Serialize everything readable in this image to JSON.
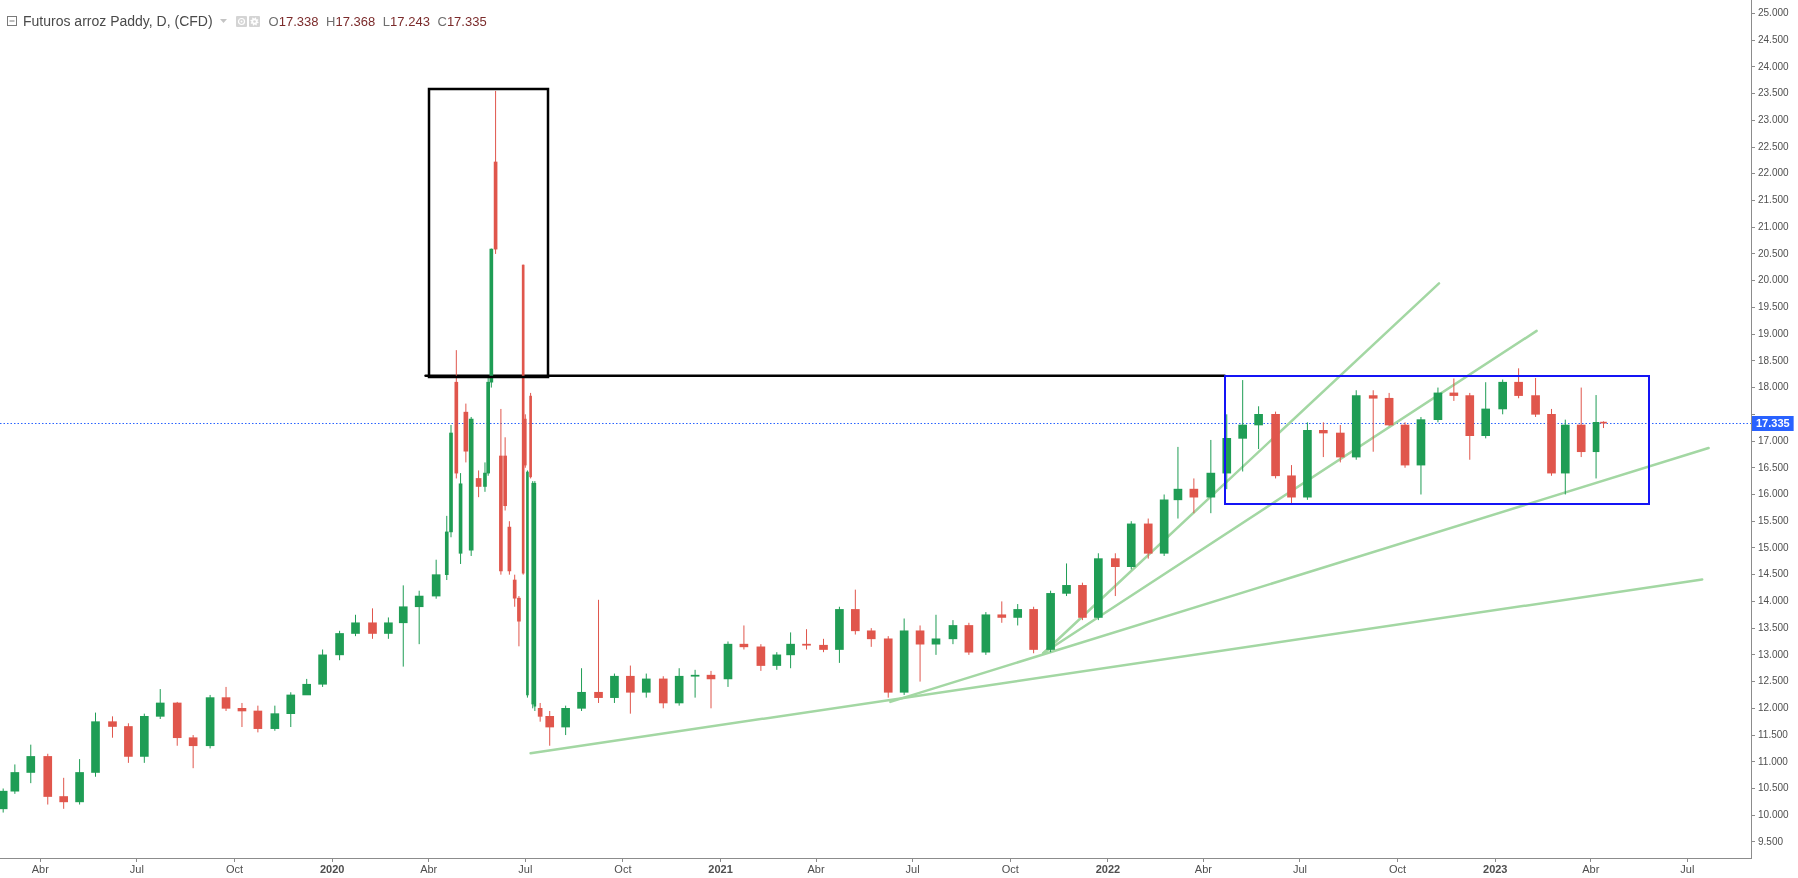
{
  "chart_data": {
    "type": "candlestick",
    "title": "Futuros arroz Paddy, D, (CFD)",
    "subtitle": "O17.338 H17.368 L17.243 C17.335",
    "x": [
      "2019-02-25",
      "2019-03-08",
      "2019-03-23",
      "2019-04-08",
      "2019-04-23",
      "2019-05-08",
      "2019-05-23",
      "2019-06-08",
      "2019-06-23",
      "2019-07-08",
      "2019-07-23",
      "2019-08-08",
      "2019-08-23",
      "2019-09-08",
      "2019-09-23",
      "2019-10-08",
      "2019-10-23",
      "2019-11-08",
      "2019-11-23",
      "2019-12-08",
      "2019-12-23",
      "2020-01-08",
      "2020-01-23",
      "2020-02-08",
      "2020-02-23",
      "2020-03-08",
      "2020-03-23",
      "2020-04-08",
      "2020-04-18",
      "2020-04-22",
      "2020-04-27",
      "2020-05-01",
      "2020-05-06",
      "2020-05-11",
      "2020-05-18",
      "2020-05-24",
      "2020-05-27",
      "2020-05-30",
      "2020-06-03",
      "2020-06-08",
      "2020-06-12",
      "2020-06-16",
      "2020-06-21",
      "2020-06-25",
      "2020-06-29",
      "2020-07-01",
      "2020-07-03",
      "2020-07-06",
      "2020-07-08",
      "2020-07-10",
      "2020-07-15",
      "2020-07-24",
      "2020-08-08",
      "2020-08-23",
      "2020-09-08",
      "2020-09-23",
      "2020-10-08",
      "2020-10-23",
      "2020-11-08",
      "2020-11-23",
      "2020-12-08",
      "2020-12-23",
      "2021-01-08",
      "2021-01-23",
      "2021-02-08",
      "2021-02-23",
      "2021-03-08",
      "2021-03-23",
      "2021-04-08",
      "2021-04-23",
      "2021-05-08",
      "2021-05-23",
      "2021-06-08",
      "2021-06-23",
      "2021-07-08",
      "2021-07-23",
      "2021-08-08",
      "2021-08-23",
      "2021-09-08",
      "2021-09-23",
      "2021-10-08",
      "2021-10-23",
      "2021-11-08",
      "2021-11-23",
      "2021-12-08",
      "2021-12-23",
      "2022-01-08",
      "2022-01-23",
      "2022-02-08",
      "2022-02-23",
      "2022-03-08",
      "2022-03-23",
      "2022-04-08",
      "2022-04-23",
      "2022-05-08",
      "2022-05-23",
      "2022-06-08",
      "2022-06-23",
      "2022-07-08",
      "2022-07-23",
      "2022-08-08",
      "2022-08-23",
      "2022-09-08",
      "2022-09-23",
      "2022-10-08",
      "2022-10-23",
      "2022-11-08",
      "2022-11-23",
      "2022-12-08",
      "2022-12-23",
      "2023-01-08",
      "2023-01-23",
      "2023-02-08",
      "2023-02-23",
      "2023-03-08",
      "2023-03-23",
      "2023-04-06",
      "2023-04-13"
    ],
    "ohlc": [
      [
        10.12,
        10.5,
        10.05,
        10.45
      ],
      [
        10.45,
        10.95,
        10.4,
        10.8
      ],
      [
        10.8,
        11.32,
        10.6,
        11.1
      ],
      [
        11.1,
        11.15,
        10.2,
        10.35
      ],
      [
        10.35,
        10.7,
        10.12,
        10.25
      ],
      [
        10.25,
        11.05,
        10.2,
        10.8
      ],
      [
        10.8,
        11.92,
        10.72,
        11.75
      ],
      [
        11.75,
        11.85,
        11.45,
        11.66
      ],
      [
        11.66,
        11.72,
        10.98,
        11.1
      ],
      [
        11.1,
        11.9,
        10.98,
        11.85
      ],
      [
        11.85,
        12.36,
        11.8,
        12.1
      ],
      [
        12.1,
        12.12,
        11.3,
        11.45
      ],
      [
        11.45,
        11.5,
        10.88,
        11.3
      ],
      [
        11.3,
        12.25,
        11.25,
        12.2
      ],
      [
        12.2,
        12.4,
        11.95,
        12.0
      ],
      [
        12.0,
        12.1,
        11.65,
        11.95
      ],
      [
        11.95,
        12.05,
        11.55,
        11.62
      ],
      [
        11.62,
        12.05,
        11.58,
        11.9
      ],
      [
        11.9,
        12.3,
        11.65,
        12.25
      ],
      [
        12.25,
        12.55,
        12.25,
        12.45
      ],
      [
        12.45,
        13.1,
        12.4,
        13.0
      ],
      [
        13.0,
        13.45,
        12.9,
        13.4
      ],
      [
        13.4,
        13.75,
        13.35,
        13.6
      ],
      [
        13.6,
        13.87,
        13.3,
        13.4
      ],
      [
        13.4,
        13.7,
        13.3,
        13.6
      ],
      [
        13.6,
        14.3,
        12.78,
        13.9
      ],
      [
        13.9,
        14.2,
        13.2,
        14.1
      ],
      [
        14.1,
        14.78,
        14.05,
        14.5
      ],
      [
        14.5,
        15.6,
        14.4,
        15.3
      ],
      [
        15.3,
        17.3,
        15.2,
        17.15
      ],
      [
        18.1,
        18.7,
        16.3,
        16.4
      ],
      [
        14.9,
        16.4,
        14.7,
        16.2
      ],
      [
        17.54,
        17.7,
        16.6,
        16.81
      ],
      [
        14.96,
        17.45,
        14.85,
        17.41
      ],
      [
        16.3,
        16.45,
        15.95,
        16.15
      ],
      [
        16.15,
        16.6,
        16.05,
        16.4
      ],
      [
        16.4,
        18.2,
        16.35,
        18.1
      ],
      [
        18.1,
        20.6,
        18.0,
        20.59
      ],
      [
        22.22,
        23.55,
        20.5,
        20.59
      ],
      [
        16.72,
        17.6,
        14.5,
        14.57
      ],
      [
        16.72,
        17.07,
        15.7,
        15.79
      ],
      [
        15.39,
        15.5,
        14.5,
        14.57
      ],
      [
        14.4,
        14.5,
        13.9,
        14.06
      ],
      [
        14.06,
        14.1,
        13.16,
        13.63
      ],
      [
        20.29,
        20.3,
        14.5,
        14.53
      ],
      [
        17.41,
        17.5,
        16.5,
        16.55
      ],
      [
        12.25,
        16.45,
        12.2,
        16.42
      ],
      [
        17.84,
        17.9,
        16.3,
        16.33
      ],
      [
        12.08,
        16.25,
        12.0,
        16.21
      ],
      [
        12.04,
        16.25,
        11.95,
        16.21
      ],
      [
        12.0,
        12.1,
        11.75,
        11.85
      ],
      [
        11.85,
        11.95,
        11.3,
        11.65
      ],
      [
        11.65,
        12.05,
        11.5,
        12.0
      ],
      [
        12.0,
        12.75,
        11.95,
        12.3
      ],
      [
        12.3,
        14.03,
        12.1,
        12.2
      ],
      [
        12.2,
        12.65,
        12.1,
        12.6
      ],
      [
        12.6,
        12.8,
        11.9,
        12.3
      ],
      [
        12.3,
        12.65,
        12.2,
        12.55
      ],
      [
        12.55,
        12.6,
        12.0,
        12.1
      ],
      [
        12.1,
        12.75,
        12.05,
        12.6
      ],
      [
        12.6,
        12.72,
        12.2,
        12.62
      ],
      [
        12.62,
        12.7,
        12.0,
        12.55
      ],
      [
        12.55,
        13.25,
        12.4,
        13.2
      ],
      [
        13.2,
        13.55,
        13.1,
        13.15
      ],
      [
        13.15,
        13.2,
        12.7,
        12.8
      ],
      [
        12.8,
        13.05,
        12.72,
        13.0
      ],
      [
        13.0,
        13.42,
        12.75,
        13.2
      ],
      [
        13.2,
        13.48,
        13.1,
        13.18
      ],
      [
        13.18,
        13.3,
        13.05,
        13.1
      ],
      [
        13.1,
        13.9,
        12.85,
        13.85
      ],
      [
        13.85,
        14.22,
        13.38,
        13.45
      ],
      [
        13.45,
        13.5,
        13.15,
        13.3
      ],
      [
        13.3,
        13.35,
        12.2,
        12.3
      ],
      [
        12.3,
        13.68,
        12.25,
        13.45
      ],
      [
        13.45,
        13.55,
        12.5,
        13.2
      ],
      [
        13.2,
        13.75,
        13.0,
        13.3
      ],
      [
        13.3,
        13.65,
        13.2,
        13.55
      ],
      [
        13.55,
        13.6,
        13.0,
        13.05
      ],
      [
        13.05,
        13.8,
        13.0,
        13.75
      ],
      [
        13.75,
        14.0,
        13.6,
        13.7
      ],
      [
        13.7,
        13.95,
        13.55,
        13.85
      ],
      [
        13.85,
        13.9,
        13.03,
        13.1
      ],
      [
        13.1,
        14.2,
        13.05,
        14.15
      ],
      [
        14.15,
        14.71,
        14.1,
        14.3
      ],
      [
        14.3,
        14.35,
        13.65,
        13.7
      ],
      [
        13.7,
        14.9,
        13.65,
        14.8
      ],
      [
        14.8,
        14.9,
        14.1,
        14.65
      ],
      [
        14.65,
        15.5,
        14.6,
        15.45
      ],
      [
        15.45,
        15.55,
        14.8,
        14.9
      ],
      [
        14.9,
        16.0,
        14.85,
        15.9
      ],
      [
        15.9,
        16.89,
        15.55,
        16.1
      ],
      [
        16.1,
        16.3,
        15.65,
        15.95
      ],
      [
        15.95,
        17.02,
        15.65,
        16.4
      ],
      [
        16.4,
        17.5,
        16.1,
        17.05
      ],
      [
        17.05,
        18.14,
        16.43,
        17.3
      ],
      [
        17.3,
        17.65,
        16.85,
        17.5
      ],
      [
        17.5,
        17.55,
        16.3,
        16.35
      ],
      [
        16.35,
        16.55,
        15.83,
        15.95
      ],
      [
        15.95,
        17.35,
        15.9,
        17.2
      ],
      [
        17.2,
        17.35,
        16.7,
        17.15
      ],
      [
        17.15,
        17.3,
        16.6,
        16.7
      ],
      [
        16.7,
        17.95,
        16.65,
        17.85
      ],
      [
        17.85,
        17.95,
        16.8,
        17.8
      ],
      [
        17.8,
        17.9,
        17.28,
        17.3
      ],
      [
        17.3,
        17.35,
        16.5,
        16.55
      ],
      [
        16.55,
        17.45,
        16.0,
        17.4
      ],
      [
        17.4,
        18.0,
        17.35,
        17.9
      ],
      [
        17.9,
        18.17,
        17.75,
        17.85
      ],
      [
        17.85,
        17.9,
        16.65,
        17.1
      ],
      [
        17.1,
        18.1,
        17.05,
        17.6
      ],
      [
        17.6,
        18.15,
        17.5,
        18.1
      ],
      [
        18.1,
        18.36,
        17.8,
        17.85
      ],
      [
        17.85,
        18.18,
        17.45,
        17.5
      ],
      [
        17.5,
        17.6,
        16.35,
        16.4
      ],
      [
        16.4,
        17.4,
        16.0,
        17.3
      ],
      [
        17.3,
        18.0,
        16.7,
        16.8
      ],
      [
        16.8,
        17.86,
        16.3,
        17.35
      ],
      [
        17.338,
        17.368,
        17.243,
        17.335
      ]
    ],
    "colors": [
      "#1f9d55",
      "#1f9d55",
      "#1f9d55",
      "#e0564c",
      "#e0564c",
      "#1f9d55",
      "#1f9d55",
      "#e0564c",
      "#e0564c",
      "#1f9d55",
      "#1f9d55",
      "#e0564c",
      "#e0564c",
      "#1f9d55",
      "#e0564c",
      "#e0564c",
      "#e0564c",
      "#1f9d55",
      "#1f9d55",
      "#1f9d55",
      "#1f9d55",
      "#1f9d55",
      "#1f9d55",
      "#e0564c",
      "#1f9d55",
      "#1f9d55",
      "#1f9d55",
      "#1f9d55",
      "#1f9d55",
      "#1f9d55",
      "#e0564c",
      "#1f9d55",
      "#e0564c",
      "#1f9d55",
      "#e0564c",
      "#1f9d55",
      "#1f9d55",
      "#1f9d55",
      "#e0564c",
      "#e0564c",
      "#e0564c",
      "#e0564c",
      "#e0564c",
      "#e0564c",
      "#e0564c",
      "#e0564c",
      "#1f9d55",
      "#e0564c",
      "#1f9d55",
      "#1f9d55",
      "#e0564c",
      "#e0564c",
      "#1f9d55",
      "#1f9d55",
      "#e0564c",
      "#1f9d55",
      "#e0564c",
      "#1f9d55",
      "#e0564c",
      "#1f9d55",
      "#1f9d55",
      "#e0564c",
      "#1f9d55",
      "#e0564c",
      "#e0564c",
      "#1f9d55",
      "#1f9d55",
      "#e0564c",
      "#e0564c",
      "#1f9d55",
      "#e0564c",
      "#e0564c",
      "#e0564c",
      "#1f9d55",
      "#e0564c",
      "#1f9d55",
      "#1f9d55",
      "#e0564c",
      "#1f9d55",
      "#e0564c",
      "#1f9d55",
      "#e0564c",
      "#1f9d55",
      "#1f9d55",
      "#e0564c",
      "#1f9d55",
      "#e0564c",
      "#1f9d55",
      "#e0564c",
      "#1f9d55",
      "#1f9d55",
      "#e0564c",
      "#1f9d55",
      "#1f9d55",
      "#1f9d55",
      "#1f9d55",
      "#e0564c",
      "#e0564c",
      "#1f9d55",
      "#e0564c",
      "#e0564c",
      "#1f9d55",
      "#e0564c",
      "#e0564c",
      "#e0564c",
      "#1f9d55",
      "#1f9d55",
      "#e0564c",
      "#e0564c",
      "#1f9d55",
      "#1f9d55",
      "#e0564c",
      "#e0564c",
      "#e0564c",
      "#1f9d55",
      "#e0564c",
      "#1f9d55",
      "#e0564c"
    ],
    "series": [
      {
        "type": "line",
        "color": "#a3d7a3",
        "x": [
          "2020-07-06",
          "2023-07-15"
        ],
        "values": [
          11.16,
          14.41
        ]
      },
      {
        "type": "line",
        "color": "#a3d7a3",
        "x": [
          "2021-06-10",
          "2023-07-21"
        ],
        "values": [
          12.12,
          16.87
        ]
      },
      {
        "type": "line",
        "color": "#a3d7a3",
        "x": [
          "2021-11-01",
          "2022-11-09"
        ],
        "values": [
          13.03,
          19.95
        ]
      },
      {
        "type": "line",
        "color": "#a3d7a3",
        "x": [
          "2021-11-01",
          "2023-02-09"
        ],
        "values": [
          13.03,
          19.06
        ]
      },
      {
        "type": "line",
        "color": "#000000",
        "x": [
          "2020-03-29",
          "2022-04-21"
        ],
        "values": [
          18.22,
          18.22
        ]
      }
    ],
    "xlim": [
      "2019-02-22",
      "2023-08-30"
    ],
    "xticks": [
      {
        "value": "2019-04-01",
        "label": "Abr"
      },
      {
        "value": "2019-07-01",
        "label": "Jul"
      },
      {
        "value": "2019-10-01",
        "label": "Oct"
      },
      {
        "value": "2020-01-01",
        "label": "2020"
      },
      {
        "value": "2020-04-01",
        "label": "Abr"
      },
      {
        "value": "2020-07-01",
        "label": "Jul"
      },
      {
        "value": "2020-10-01",
        "label": "Oct"
      },
      {
        "value": "2021-01-01",
        "label": "2021"
      },
      {
        "value": "2021-04-01",
        "label": "Abr"
      },
      {
        "value": "2021-07-01",
        "label": "Jul"
      },
      {
        "value": "2021-10-01",
        "label": "Oct"
      },
      {
        "value": "2022-01-01",
        "label": "2022"
      },
      {
        "value": "2022-04-01",
        "label": "Abr"
      },
      {
        "value": "2022-07-01",
        "label": "Jul"
      },
      {
        "value": "2022-10-01",
        "label": "Oct"
      },
      {
        "value": "2023-01-01",
        "label": "2023"
      },
      {
        "value": "2023-04-01",
        "label": "Abr"
      },
      {
        "value": "2023-07-01",
        "label": "Jul"
      }
    ],
    "ylim": [
      9.2,
      25.25
    ],
    "yticks": [
      {
        "value": 9.5,
        "label": "9.500"
      },
      {
        "value": 10,
        "label": "10.000"
      },
      {
        "value": 10.5,
        "label": "10.500"
      },
      {
        "value": 11,
        "label": "11.000"
      },
      {
        "value": 11.5,
        "label": "11.500"
      },
      {
        "value": 12,
        "label": "12.000"
      },
      {
        "value": 12.5,
        "label": "12.500"
      },
      {
        "value": 13,
        "label": "13.000"
      },
      {
        "value": 13.5,
        "label": "13.500"
      },
      {
        "value": 14,
        "label": "14.000"
      },
      {
        "value": 14.5,
        "label": "14.500"
      },
      {
        "value": 15,
        "label": "15.000"
      },
      {
        "value": 15.5,
        "label": "15.500"
      },
      {
        "value": 16,
        "label": "16.000"
      },
      {
        "value": 16.5,
        "label": "16.500"
      },
      {
        "value": 17,
        "label": "17.000"
      },
      {
        "value": 17.5,
        "label": null
      },
      {
        "value": 18,
        "label": "18.000"
      },
      {
        "value": 18.5,
        "label": "18.500"
      },
      {
        "value": 19,
        "label": "19.000"
      },
      {
        "value": 19.5,
        "label": "19.500"
      },
      {
        "value": 20,
        "label": "20.000"
      },
      {
        "value": 20.5,
        "label": "20.500"
      },
      {
        "value": 21,
        "label": "21.000"
      },
      {
        "value": 21.5,
        "label": "21.500"
      },
      {
        "value": 22,
        "label": "22.000"
      },
      {
        "value": 22.5,
        "label": "22.500"
      },
      {
        "value": 23,
        "label": "23.000"
      },
      {
        "value": 23.5,
        "label": "23.500"
      },
      {
        "value": 24,
        "label": "24.000"
      },
      {
        "value": 24.5,
        "label": "24.500"
      },
      {
        "value": 25,
        "label": "25.000"
      }
    ],
    "ref_lines": [
      {
        "axis": "y",
        "value": 17.335,
        "label": "17.335",
        "color": "#2962ff",
        "line_style": "dotted"
      }
    ]
  }
}
